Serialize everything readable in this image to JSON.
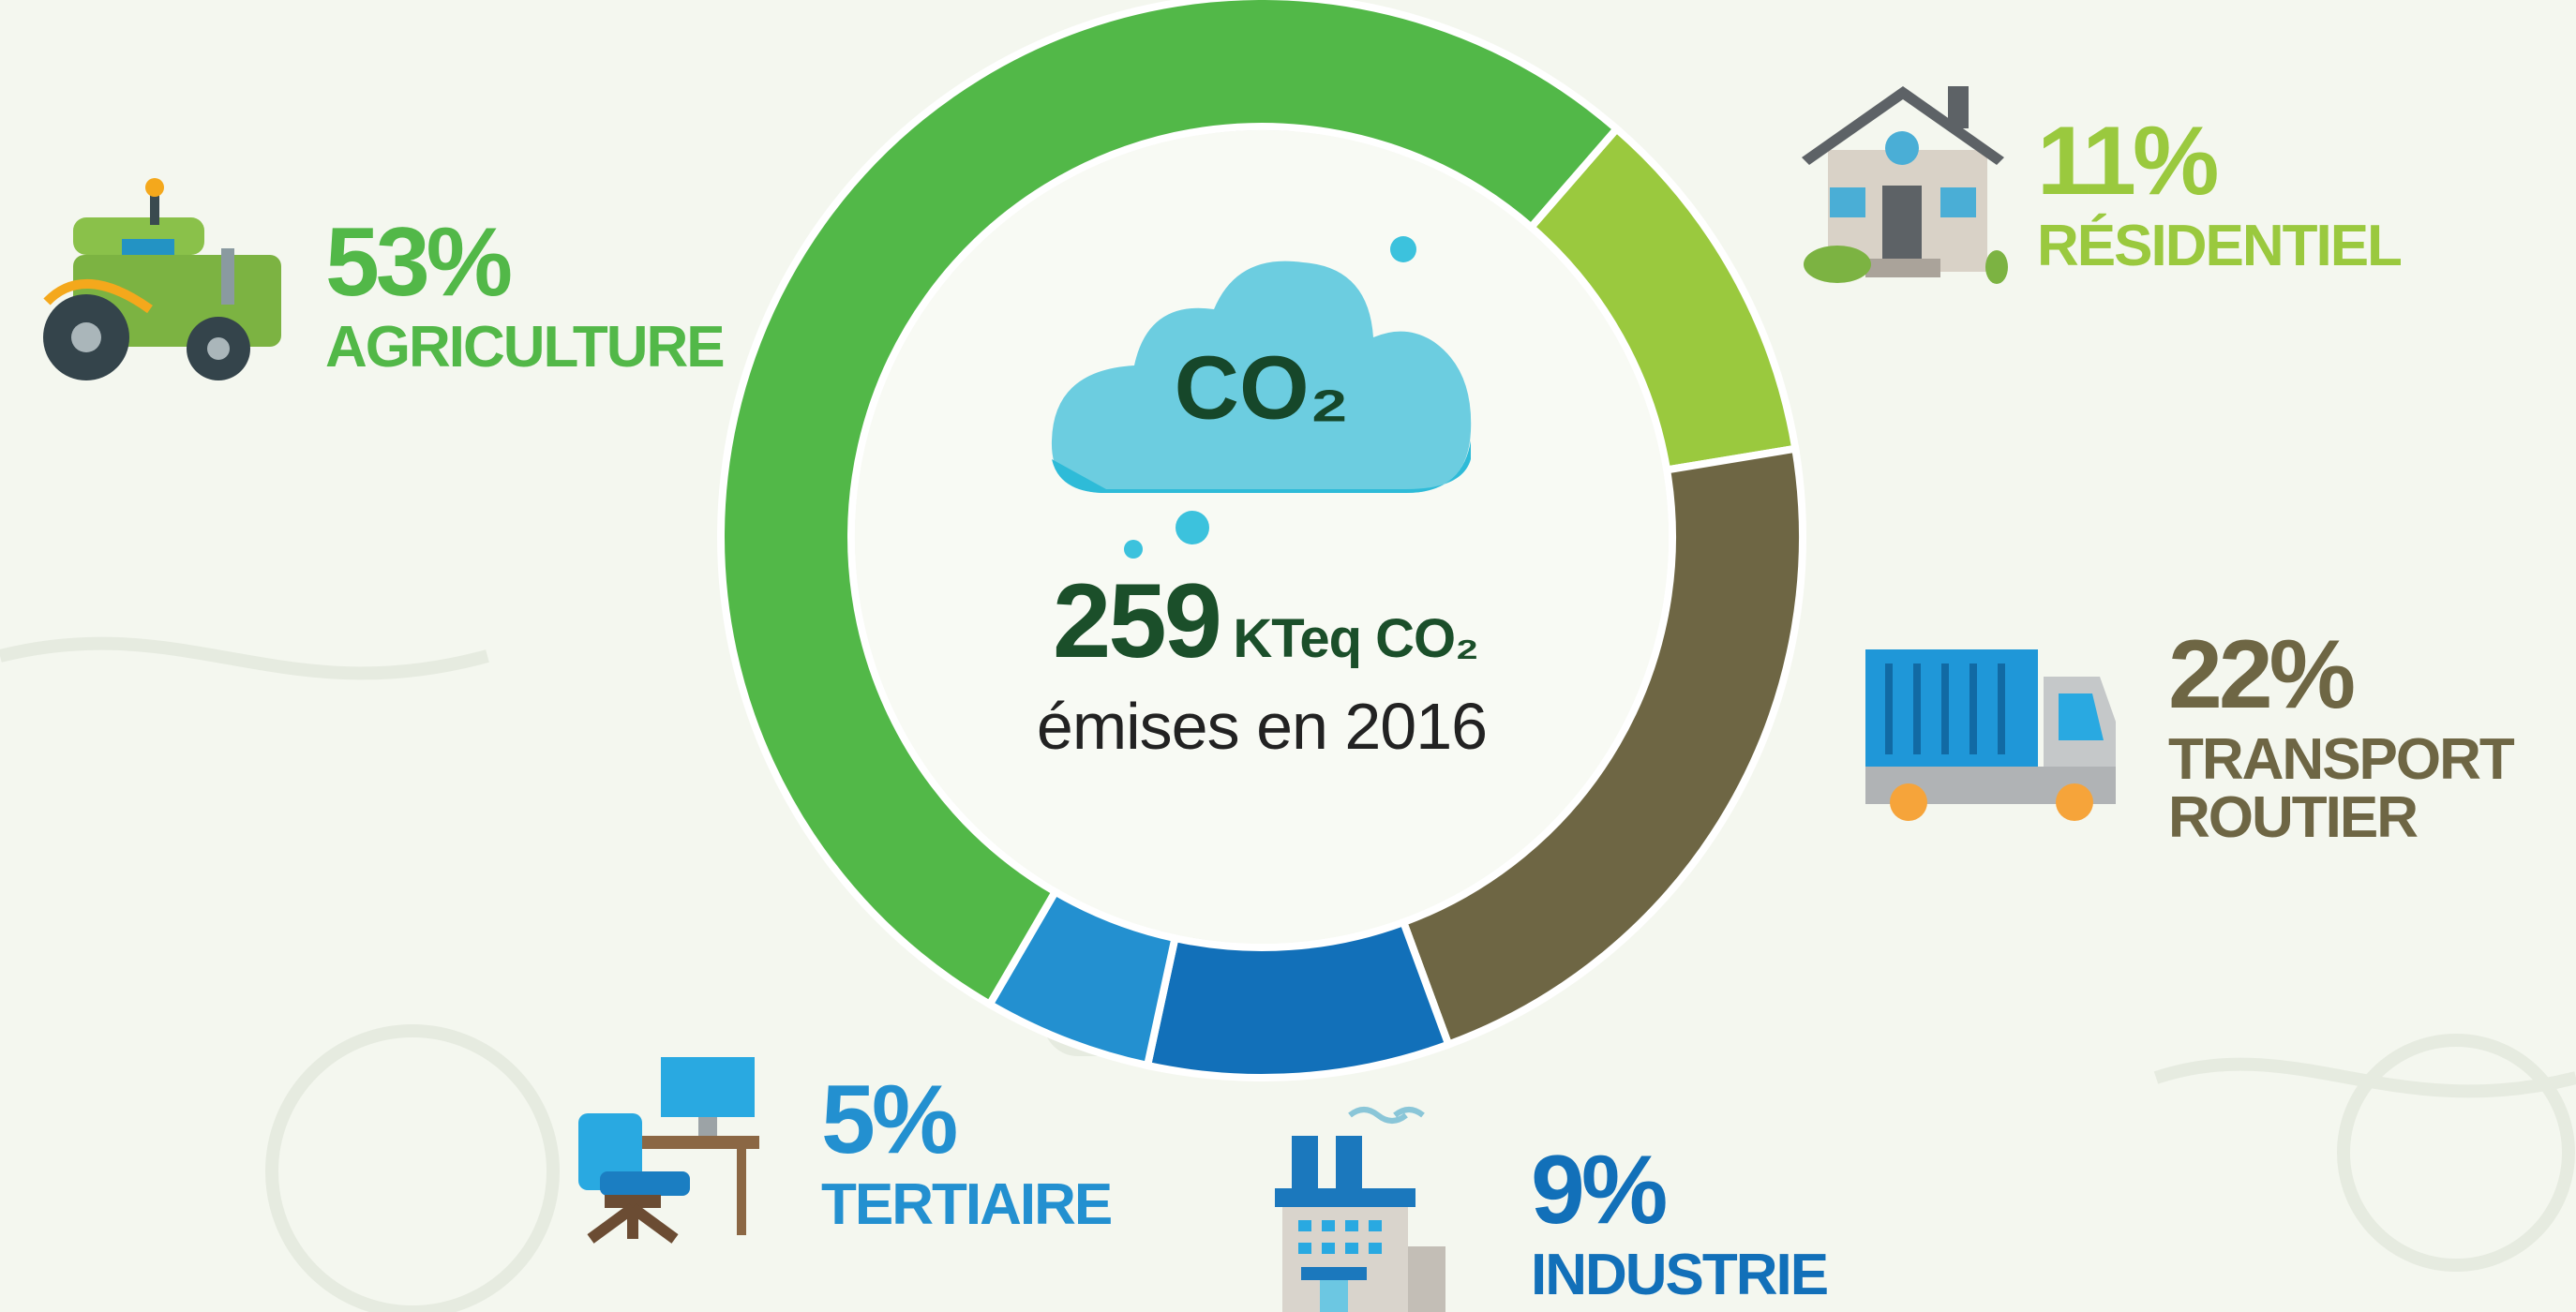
{
  "chart_data": {
    "type": "donut",
    "categories": [
      "RÉSIDENTIEL",
      "TRANSPORT ROUTIER",
      "INDUSTRIE",
      "TERTIAIRE",
      "AGRICULTURE"
    ],
    "values": [
      11,
      22,
      9,
      5,
      53
    ],
    "value_labels": [
      "11%",
      "22%",
      "9%",
      "5%",
      "53%"
    ],
    "colors": [
      "#9ac93e",
      "#6e6644",
      "#1270b9",
      "#2390d0",
      "#52b848"
    ],
    "cloud_label": "CO₂",
    "center_value": 259,
    "center_unit": "KTeq CO₂",
    "center_caption": "émises en 2016"
  }
}
